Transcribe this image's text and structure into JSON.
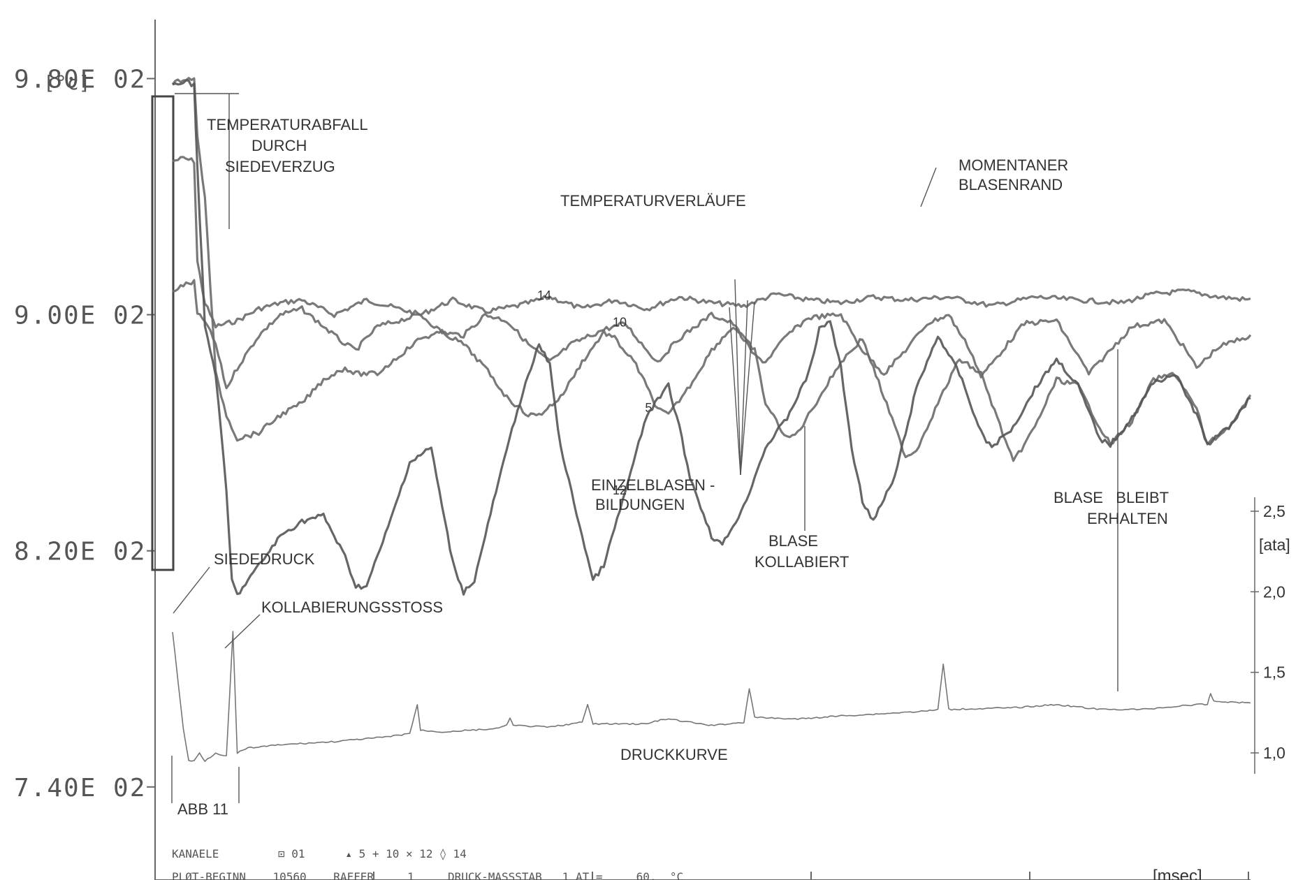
{
  "chart_data": {
    "type": "line",
    "x_unit": "[msec]",
    "y_unit": "[°c]",
    "y_ticks": [
      "9.80E 02",
      "9.00E 02",
      "8.20E 02",
      "7.40E 02"
    ],
    "y_tick_values": [
      980,
      900,
      820,
      740
    ],
    "ylim": [
      708,
      1000
    ],
    "xlim": [
      0,
      100
    ],
    "right_axis": {
      "unit": "[ata]",
      "ticks": [
        "2,5",
        "2,0",
        "1,5",
        "1,0"
      ],
      "tick_values": [
        2.5,
        2.0,
        1.5,
        1.0
      ]
    },
    "series": [
      {
        "name": "14",
        "color": "#6a6a6a",
        "points": [
          [
            0,
            952
          ],
          [
            1,
            953
          ],
          [
            2,
            952
          ],
          [
            2.3,
            918
          ],
          [
            3,
            904
          ],
          [
            4,
            896
          ],
          [
            6,
            898
          ],
          [
            8,
            902
          ],
          [
            10,
            904
          ],
          [
            12,
            905
          ],
          [
            15,
            900
          ],
          [
            18,
            905
          ],
          [
            20,
            903
          ],
          [
            23,
            900
          ],
          [
            26,
            905
          ],
          [
            29,
            901
          ],
          [
            32,
            903
          ],
          [
            35,
            906
          ],
          [
            38,
            902
          ],
          [
            41,
            905
          ],
          [
            44,
            902
          ],
          [
            47,
            906
          ],
          [
            50,
            904
          ],
          [
            53,
            903
          ],
          [
            56,
            907
          ],
          [
            59,
            905
          ],
          [
            62,
            904
          ],
          [
            65,
            906
          ],
          [
            68,
            905
          ],
          [
            72,
            906
          ],
          [
            76,
            903
          ],
          [
            80,
            906
          ],
          [
            84,
            905
          ],
          [
            88,
            904
          ],
          [
            91,
            907
          ],
          [
            94,
            908
          ],
          [
            97,
            906
          ],
          [
            100,
            905
          ]
        ]
      },
      {
        "name": "10",
        "color": "#6a6a6a",
        "points": [
          [
            0,
            908
          ],
          [
            1,
            910
          ],
          [
            2,
            911
          ],
          [
            2.3,
            900
          ],
          [
            3,
            898
          ],
          [
            4,
            890
          ],
          [
            5,
            875
          ],
          [
            6,
            882
          ],
          [
            8,
            893
          ],
          [
            10,
            900
          ],
          [
            12,
            902
          ],
          [
            14,
            896
          ],
          [
            16,
            890
          ],
          [
            17,
            888
          ],
          [
            19,
            896
          ],
          [
            21,
            898
          ],
          [
            23,
            900
          ],
          [
            25,
            894
          ],
          [
            27,
            893
          ],
          [
            29,
            900
          ],
          [
            31,
            898
          ],
          [
            33,
            890
          ],
          [
            35,
            884
          ],
          [
            37,
            890
          ],
          [
            40,
            895
          ],
          [
            42,
            897
          ],
          [
            44,
            888
          ],
          [
            45,
            884
          ],
          [
            47,
            892
          ],
          [
            50,
            900
          ],
          [
            52,
            897
          ],
          [
            54,
            886
          ],
          [
            55,
            884
          ],
          [
            57,
            893
          ],
          [
            59,
            899
          ],
          [
            62,
            900
          ],
          [
            64,
            888
          ],
          [
            66,
            880
          ],
          [
            68,
            888
          ],
          [
            70,
            897
          ],
          [
            72,
            900
          ],
          [
            74,
            888
          ],
          [
            75,
            879
          ],
          [
            77,
            888
          ],
          [
            79,
            897
          ],
          [
            82,
            898
          ],
          [
            84,
            886
          ],
          [
            85,
            880
          ],
          [
            87,
            888
          ],
          [
            89,
            896
          ],
          [
            92,
            898
          ],
          [
            94,
            888
          ],
          [
            95,
            882
          ],
          [
            97,
            889
          ],
          [
            100,
            893
          ]
        ]
      },
      {
        "name": "5",
        "color": "#6a6a6a",
        "points": [
          [
            0,
            978
          ],
          [
            1,
            980
          ],
          [
            2,
            980
          ],
          [
            2.3,
            960
          ],
          [
            3,
            940
          ],
          [
            4,
            880
          ],
          [
            5,
            866
          ],
          [
            6,
            858
          ],
          [
            8,
            860
          ],
          [
            10,
            866
          ],
          [
            12,
            870
          ],
          [
            14,
            878
          ],
          [
            16,
            882
          ],
          [
            17,
            880
          ],
          [
            19,
            880
          ],
          [
            21,
            886
          ],
          [
            23,
            892
          ],
          [
            25,
            894
          ],
          [
            27,
            890
          ],
          [
            29,
            882
          ],
          [
            31,
            872
          ],
          [
            33,
            866
          ],
          [
            34,
            866
          ],
          [
            36,
            872
          ],
          [
            38,
            884
          ],
          [
            40,
            894
          ],
          [
            41,
            892
          ],
          [
            43,
            883
          ],
          [
            45,
            868
          ],
          [
            46,
            866
          ],
          [
            48,
            876
          ],
          [
            50,
            888
          ],
          [
            52,
            896
          ],
          [
            54,
            888
          ],
          [
            55,
            870
          ],
          [
            57,
            858
          ],
          [
            58,
            860
          ],
          [
            60,
            872
          ],
          [
            62,
            884
          ],
          [
            64,
            892
          ],
          [
            66,
            872
          ],
          [
            68,
            852
          ],
          [
            69,
            854
          ],
          [
            71,
            870
          ],
          [
            73,
            885
          ],
          [
            75,
            880
          ],
          [
            77,
            860
          ],
          [
            78,
            850
          ],
          [
            80,
            862
          ],
          [
            82,
            878
          ],
          [
            84,
            876
          ],
          [
            86,
            862
          ],
          [
            87,
            856
          ],
          [
            89,
            864
          ],
          [
            91,
            878
          ],
          [
            93,
            880
          ],
          [
            95,
            868
          ],
          [
            96,
            856
          ],
          [
            98,
            862
          ],
          [
            100,
            872
          ]
        ]
      },
      {
        "name": "12",
        "color": "#555555",
        "points": [
          [
            0,
            978
          ],
          [
            1,
            979
          ],
          [
            2,
            978
          ],
          [
            2.3,
            950
          ],
          [
            3,
            896
          ],
          [
            4,
            880
          ],
          [
            5,
            840
          ],
          [
            5.5,
            810
          ],
          [
            6,
            805
          ],
          [
            8,
            815
          ],
          [
            10,
            825
          ],
          [
            12,
            830
          ],
          [
            14,
            832
          ],
          [
            16,
            818
          ],
          [
            17,
            808
          ],
          [
            18,
            808
          ],
          [
            20,
            828
          ],
          [
            22,
            850
          ],
          [
            24,
            855
          ],
          [
            25,
            835
          ],
          [
            26,
            816
          ],
          [
            27,
            806
          ],
          [
            28,
            810
          ],
          [
            30,
            840
          ],
          [
            32,
            868
          ],
          [
            34,
            890
          ],
          [
            35,
            883
          ],
          [
            36,
            855
          ],
          [
            38,
            825
          ],
          [
            39,
            810
          ],
          [
            40,
            815
          ],
          [
            42,
            840
          ],
          [
            44,
            866
          ],
          [
            46,
            876
          ],
          [
            47,
            862
          ],
          [
            48,
            845
          ],
          [
            50,
            825
          ],
          [
            51,
            822
          ],
          [
            53,
            835
          ],
          [
            55,
            855
          ],
          [
            57,
            865
          ],
          [
            59,
            880
          ],
          [
            60,
            895
          ],
          [
            61,
            898
          ],
          [
            62,
            882
          ],
          [
            63,
            855
          ],
          [
            64,
            837
          ],
          [
            65,
            830
          ],
          [
            67,
            845
          ],
          [
            69,
            875
          ],
          [
            71,
            893
          ],
          [
            73,
            880
          ],
          [
            75,
            860
          ],
          [
            76,
            855
          ],
          [
            78,
            862
          ],
          [
            80,
            875
          ],
          [
            82,
            885
          ],
          [
            84,
            876
          ],
          [
            86,
            858
          ],
          [
            87,
            856
          ],
          [
            89,
            865
          ],
          [
            91,
            877
          ],
          [
            93,
            880
          ],
          [
            95,
            866
          ],
          [
            96,
            856
          ],
          [
            98,
            862
          ],
          [
            100,
            872
          ]
        ]
      },
      {
        "name": "01",
        "color": "#666666",
        "axis": "right",
        "points": [
          [
            0,
            1.75
          ],
          [
            1,
            1.15
          ],
          [
            1.5,
            0.95
          ],
          [
            2,
            0.95
          ],
          [
            2.5,
            1.0
          ],
          [
            3,
            0.95
          ],
          [
            4,
            1.0
          ],
          [
            5,
            0.98
          ],
          [
            5.6,
            1.75
          ],
          [
            6,
            1.0
          ],
          [
            7,
            1.03
          ],
          [
            10,
            1.05
          ],
          [
            15,
            1.07
          ],
          [
            20,
            1.1
          ],
          [
            22,
            1.12
          ],
          [
            22.7,
            1.3
          ],
          [
            23,
            1.14
          ],
          [
            25,
            1.13
          ],
          [
            30,
            1.15
          ],
          [
            31,
            1.17
          ],
          [
            31.3,
            1.22
          ],
          [
            31.6,
            1.17
          ],
          [
            35,
            1.16
          ],
          [
            38,
            1.19
          ],
          [
            38.5,
            1.3
          ],
          [
            39,
            1.18
          ],
          [
            44,
            1.18
          ],
          [
            45,
            1.2
          ],
          [
            46,
            1.21
          ],
          [
            50,
            1.17
          ],
          [
            53,
            1.19
          ],
          [
            53.5,
            1.4
          ],
          [
            54,
            1.22
          ],
          [
            58,
            1.21
          ],
          [
            60,
            1.22
          ],
          [
            62,
            1.23
          ],
          [
            65,
            1.24
          ],
          [
            70,
            1.26
          ],
          [
            71,
            1.27
          ],
          [
            71.5,
            1.55
          ],
          [
            72,
            1.27
          ],
          [
            78,
            1.28
          ],
          [
            82,
            1.3
          ],
          [
            86,
            1.27
          ],
          [
            90,
            1.27
          ],
          [
            95,
            1.3
          ],
          [
            96,
            1.3
          ],
          [
            96.3,
            1.37
          ],
          [
            96.6,
            1.32
          ],
          [
            100,
            1.31
          ]
        ]
      }
    ],
    "annotations": [
      "TEMPERATURABFALL",
      "DURCH",
      "SIEDEVERZUG",
      "TEMPERATURVERLÄUFE",
      "MOMENTANER",
      "BLASENRAND",
      "EINZELBLASEN -",
      "BILDUNGEN",
      "BLASE",
      "KOLLABIERT",
      "BLASE   BLEIBT",
      "ERHALTEN",
      "SIEDEDRUCK",
      "KOLLABIERUNGSSTOSS",
      "DRUCKKURVE",
      "ABB 11"
    ],
    "footer": {
      "line1_label": "KANAELE",
      "line1_legend": "⊡ 01      ▴ 5 + 10 × 12 ◊ 14",
      "line2": "PLØT-BEGINN    10560    RAFFER     1     DRUCK-MASSSTAB   1 AT =     60.  °C"
    }
  }
}
